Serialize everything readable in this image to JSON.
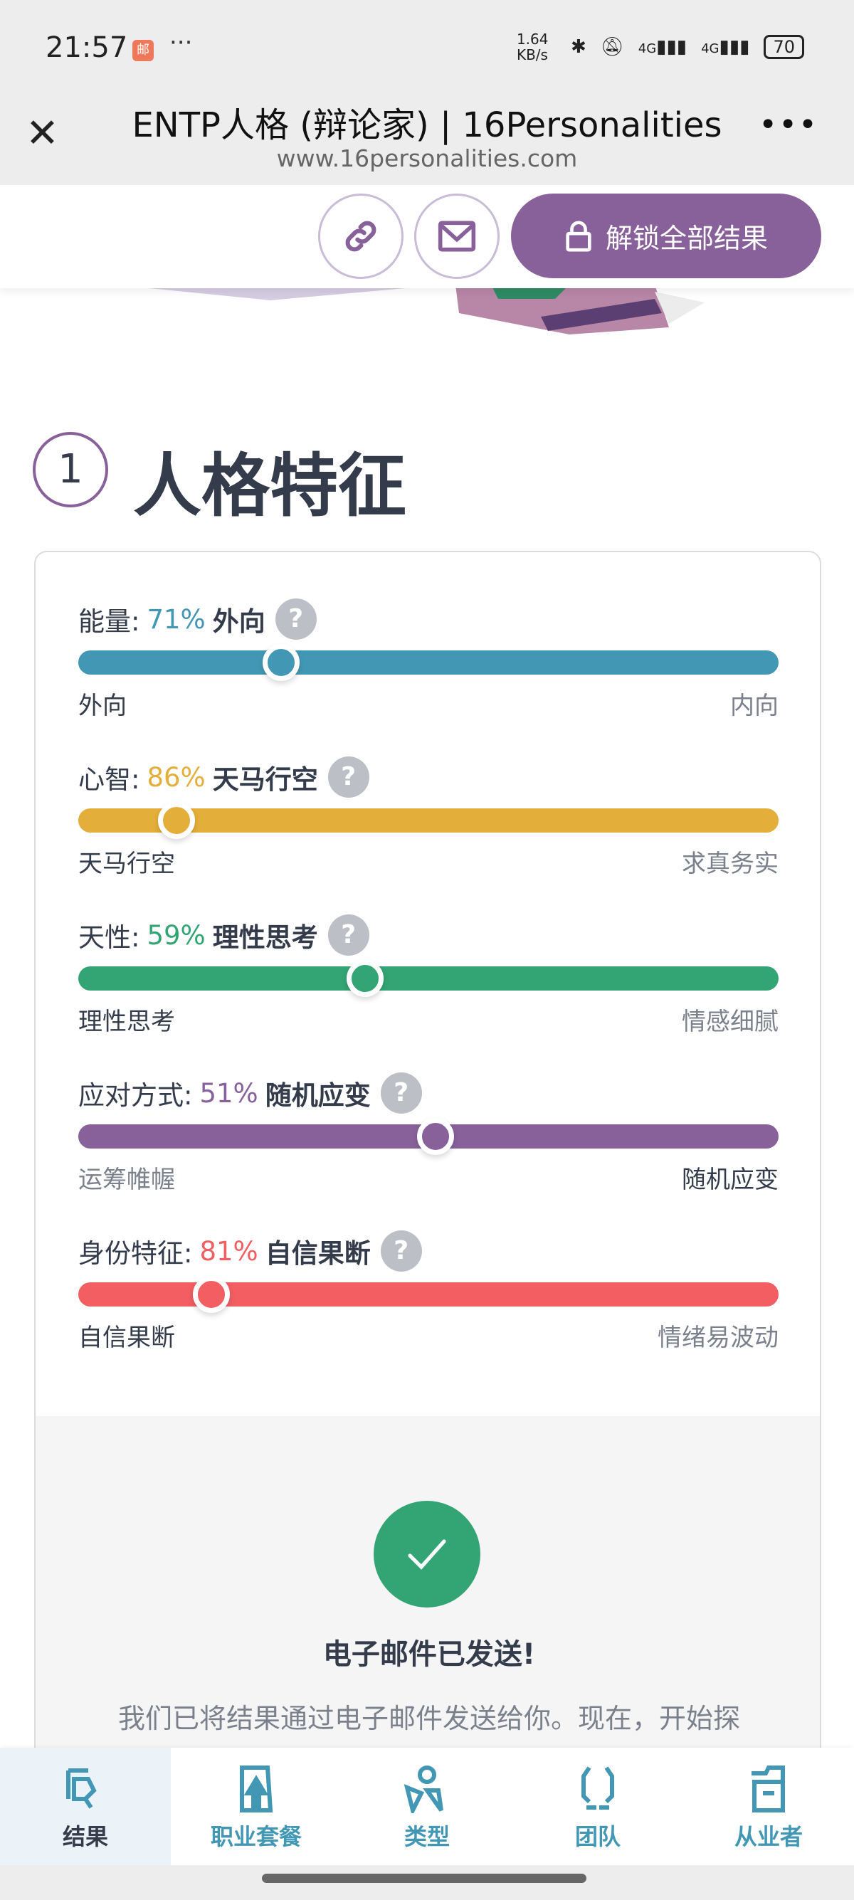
{
  "status_bar": {
    "time": "21:57",
    "notification_icon": "mail-app-icon",
    "net_speed": "1.64 KB/s",
    "signal1": "4G",
    "signal2": "4G",
    "battery": "70"
  },
  "browser": {
    "title": "ENTP人格 (辩论家) | 16Personalities",
    "url": "www.16personalities.com"
  },
  "toolbar": {
    "unlock_label": "解锁全部结果"
  },
  "section": {
    "number": "1",
    "title": "人格特征"
  },
  "traits": [
    {
      "name": "能量:",
      "percent": "71%",
      "value": 71,
      "dominant": "外向",
      "left": "外向",
      "right": "内向",
      "dominant_side": "left",
      "color": "#4298b4"
    },
    {
      "name": "心智:",
      "percent": "86%",
      "value": 86,
      "dominant": "天马行空",
      "left": "天马行空",
      "right": "求真务实",
      "dominant_side": "left",
      "color": "#e4ae3a"
    },
    {
      "name": "天性:",
      "percent": "59%",
      "value": 59,
      "dominant": "理性思考",
      "left": "理性思考",
      "right": "情感细腻",
      "dominant_side": "left",
      "color": "#33a474"
    },
    {
      "name": "应对方式:",
      "percent": "51%",
      "value": 51,
      "dominant": "随机应变",
      "left": "运筹帷幄",
      "right": "随机应变",
      "dominant_side": "right",
      "color": "#88619a"
    },
    {
      "name": "身份特征:",
      "percent": "81%",
      "value": 81,
      "dominant": "自信果断",
      "left": "自信果断",
      "right": "情绪易波动",
      "dominant_side": "left",
      "color": "#f25e62"
    }
  ],
  "help_label": "?",
  "email_sent": {
    "title": "电子邮件已发送!",
    "text": "我们已将结果通过电子邮件发送给你。现在，开始探"
  },
  "bottom_nav": [
    {
      "label": "结果",
      "icon": "results-icon",
      "active": true
    },
    {
      "label": "职业套餐",
      "icon": "career-icon",
      "active": false
    },
    {
      "label": "类型",
      "icon": "types-icon",
      "active": false
    },
    {
      "label": "团队",
      "icon": "teams-icon",
      "active": false
    },
    {
      "label": "从业者",
      "icon": "professionals-icon",
      "active": false
    }
  ]
}
